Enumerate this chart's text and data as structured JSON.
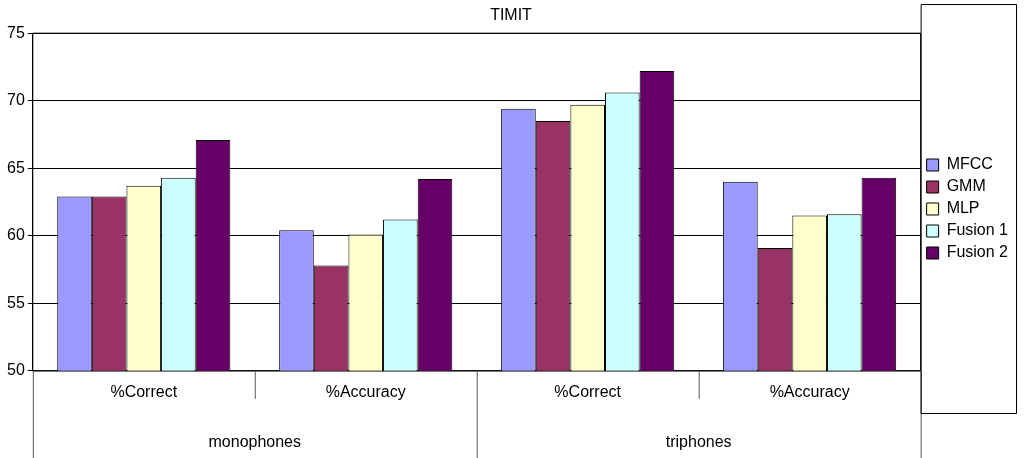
{
  "chart_data": {
    "type": "bar",
    "title": "TIMIT",
    "categories": [
      "%Correct",
      "%Accuracy",
      "%Correct",
      "%Accuracy"
    ],
    "annotations": [
      "monophones",
      "triphones"
    ],
    "series": [
      {
        "name": "MFCC",
        "color": "#9999ff",
        "values": [
          62.9,
          60.4,
          69.4,
          64.0
        ]
      },
      {
        "name": "GMM",
        "color": "#993366",
        "values": [
          62.9,
          57.8,
          68.5,
          59.1
        ]
      },
      {
        "name": "MLP",
        "color": "#ffffcc",
        "values": [
          63.7,
          60.1,
          69.7,
          61.5
        ]
      },
      {
        "name": "Fusion 1",
        "color": "#ccffff",
        "values": [
          64.3,
          61.2,
          70.6,
          61.6
        ]
      },
      {
        "name": "Fusion 2",
        "color": "#660066",
        "values": [
          67.1,
          64.2,
          72.2,
          64.3
        ]
      }
    ],
    "ylim": [
      50,
      75
    ],
    "yticks": [
      50,
      55,
      60,
      65,
      70,
      75
    ],
    "grid": "y",
    "legend": "right"
  }
}
